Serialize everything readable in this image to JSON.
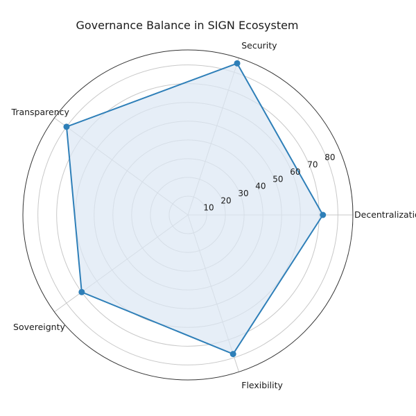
{
  "chart_data": {
    "type": "radar",
    "title": "Governance Balance in SIGN Ecosystem",
    "categories": [
      "Decentralization",
      "Security",
      "Transparency",
      "Sovereignty",
      "Flexibility"
    ],
    "series": [
      {
        "values": [
          72,
          85,
          80,
          70,
          78
        ]
      }
    ],
    "r_ticks": [
      "10",
      "20",
      "30",
      "40",
      "50",
      "60",
      "70",
      "80"
    ],
    "r_range": [
      0,
      88
    ],
    "grid": true,
    "colors": {
      "line": "#2e7fb8",
      "fill": "#dbe7f4",
      "grid": "#c8c8c8",
      "outer": "#333333"
    }
  }
}
